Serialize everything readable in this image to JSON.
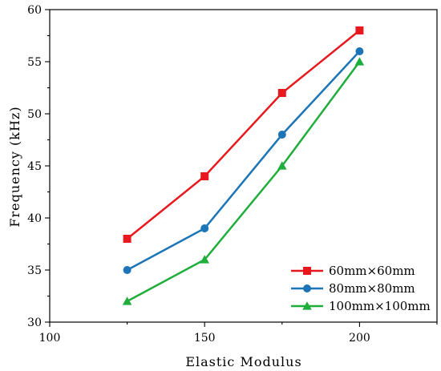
{
  "chart_data": {
    "type": "line",
    "title": "",
    "xlabel": "Elastic Modulus",
    "ylabel": "Frequency (kHz)",
    "xlim": [
      100,
      225
    ],
    "ylim": [
      30,
      60
    ],
    "x_ticks": [
      100,
      150,
      200
    ],
    "y_ticks": [
      30,
      35,
      40,
      45,
      50,
      55,
      60
    ],
    "grid": false,
    "legend_position": "bottom-right",
    "x": [
      125,
      150,
      175,
      200
    ],
    "series": [
      {
        "name": "60mm×60mm",
        "values": [
          38,
          44,
          52,
          58
        ],
        "color": "#e8191e",
        "marker": "square"
      },
      {
        "name": "80mm×80mm",
        "values": [
          35,
          39,
          48,
          56
        ],
        "color": "#1b75b6",
        "marker": "circle"
      },
      {
        "name": "100mm×100mm",
        "values": [
          32,
          36,
          45,
          55
        ],
        "color": "#1fad3b",
        "marker": "triangle"
      }
    ]
  }
}
